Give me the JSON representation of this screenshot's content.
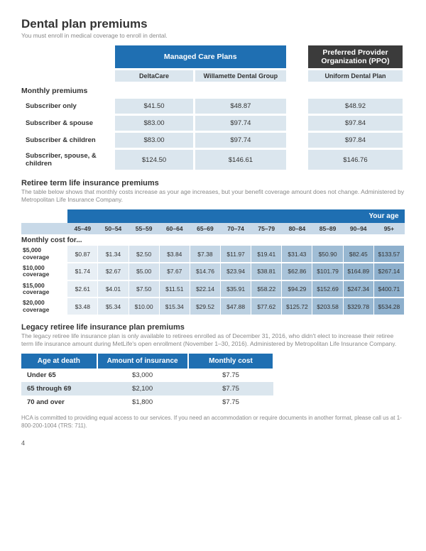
{
  "dental": {
    "title": "Dental plan premiums",
    "subtitle": "You must enroll in medical coverage to enroll in dental.",
    "group_headers": [
      "Managed Care Plans",
      "Preferred Provider Organization (PPO)"
    ],
    "plan_headers": [
      "DeltaCare",
      "Willamette Dental Group",
      "Uniform Dental Plan"
    ],
    "section_label": "Monthly premiums",
    "rows": [
      {
        "label": "Subscriber only",
        "vals": [
          "$41.50",
          "$48.87",
          "$48.92"
        ]
      },
      {
        "label": "Subscriber & spouse",
        "vals": [
          "$83.00",
          "$97.74",
          "$97.84"
        ]
      },
      {
        "label": "Subscriber & children",
        "vals": [
          "$83.00",
          "$97.74",
          "$97.84"
        ]
      },
      {
        "label": "Subscriber, spouse, & children",
        "vals": [
          "$124.50",
          "$146.61",
          "$146.76"
        ]
      }
    ]
  },
  "life": {
    "title": "Retiree term life insurance premiums",
    "subtitle": "The table below shows that monthly costs increase as your age increases, but your benefit coverage amount does not change. Administered by Metropolitan Life Insurance Company.",
    "age_header": "Your age",
    "ages": [
      "45–49",
      "50–54",
      "55–59",
      "60–64",
      "65–69",
      "70–74",
      "75–79",
      "80–84",
      "85–89",
      "90–94",
      "95+"
    ],
    "section_label": "Monthly cost for...",
    "rows": [
      {
        "label": "$5,000 coverage",
        "vals": [
          "$0.87",
          "$1.34",
          "$2.50",
          "$3.84",
          "$7.38",
          "$11.97",
          "$19.41",
          "$31.43",
          "$50.90",
          "$82.45",
          "$133.57"
        ]
      },
      {
        "label": "$10,000 coverage",
        "vals": [
          "$1.74",
          "$2.67",
          "$5.00",
          "$7.67",
          "$14.76",
          "$23.94",
          "$38.81",
          "$62.86",
          "$101.79",
          "$164.89",
          "$267.14"
        ]
      },
      {
        "label": "$15,000 coverage",
        "vals": [
          "$2.61",
          "$4.01",
          "$7.50",
          "$11.51",
          "$22.14",
          "$35.91",
          "$58.22",
          "$94.29",
          "$152.69",
          "$247.34",
          "$400.71"
        ]
      },
      {
        "label": "$20,000 coverage",
        "vals": [
          "$3.48",
          "$5.34",
          "$10.00",
          "$15.34",
          "$29.52",
          "$47.88",
          "$77.62",
          "$125.72",
          "$203.58",
          "$329.78",
          "$534.28"
        ]
      }
    ]
  },
  "legacy": {
    "title": "Legacy retiree life insurance plan premiums",
    "subtitle": "The legacy retiree life insurance plan is only available to retirees enrolled as of December 31, 2016, who didn't elect to increase their retiree term life insurance amount during MetLife's open enrollment (November 1–30, 2016). Administered by Metropolitan Life Insurance Company.",
    "headers": [
      "Age at death",
      "Amount of insurance",
      "Monthly cost"
    ],
    "rows": [
      {
        "label": "Under 65",
        "amount": "$3,000",
        "cost": "$7.75",
        "alt": false
      },
      {
        "label": "65 through 69",
        "amount": "$2,100",
        "cost": "$7.75",
        "alt": true
      },
      {
        "label": "70 and over",
        "amount": "$1,800",
        "cost": "$7.75",
        "alt": false
      }
    ]
  },
  "footnote": "HCA is committed to providing equal access to our services. If you need an accommodation or require documents in another format, please call us at 1-800-200-1004 (TRS: 711).",
  "page_number": "4",
  "colors": {
    "primary_blue": "#1f6fb2",
    "dark_header": "#3b3b3b",
    "light_blue": "#dbe6ee",
    "muted_text": "#888888"
  }
}
